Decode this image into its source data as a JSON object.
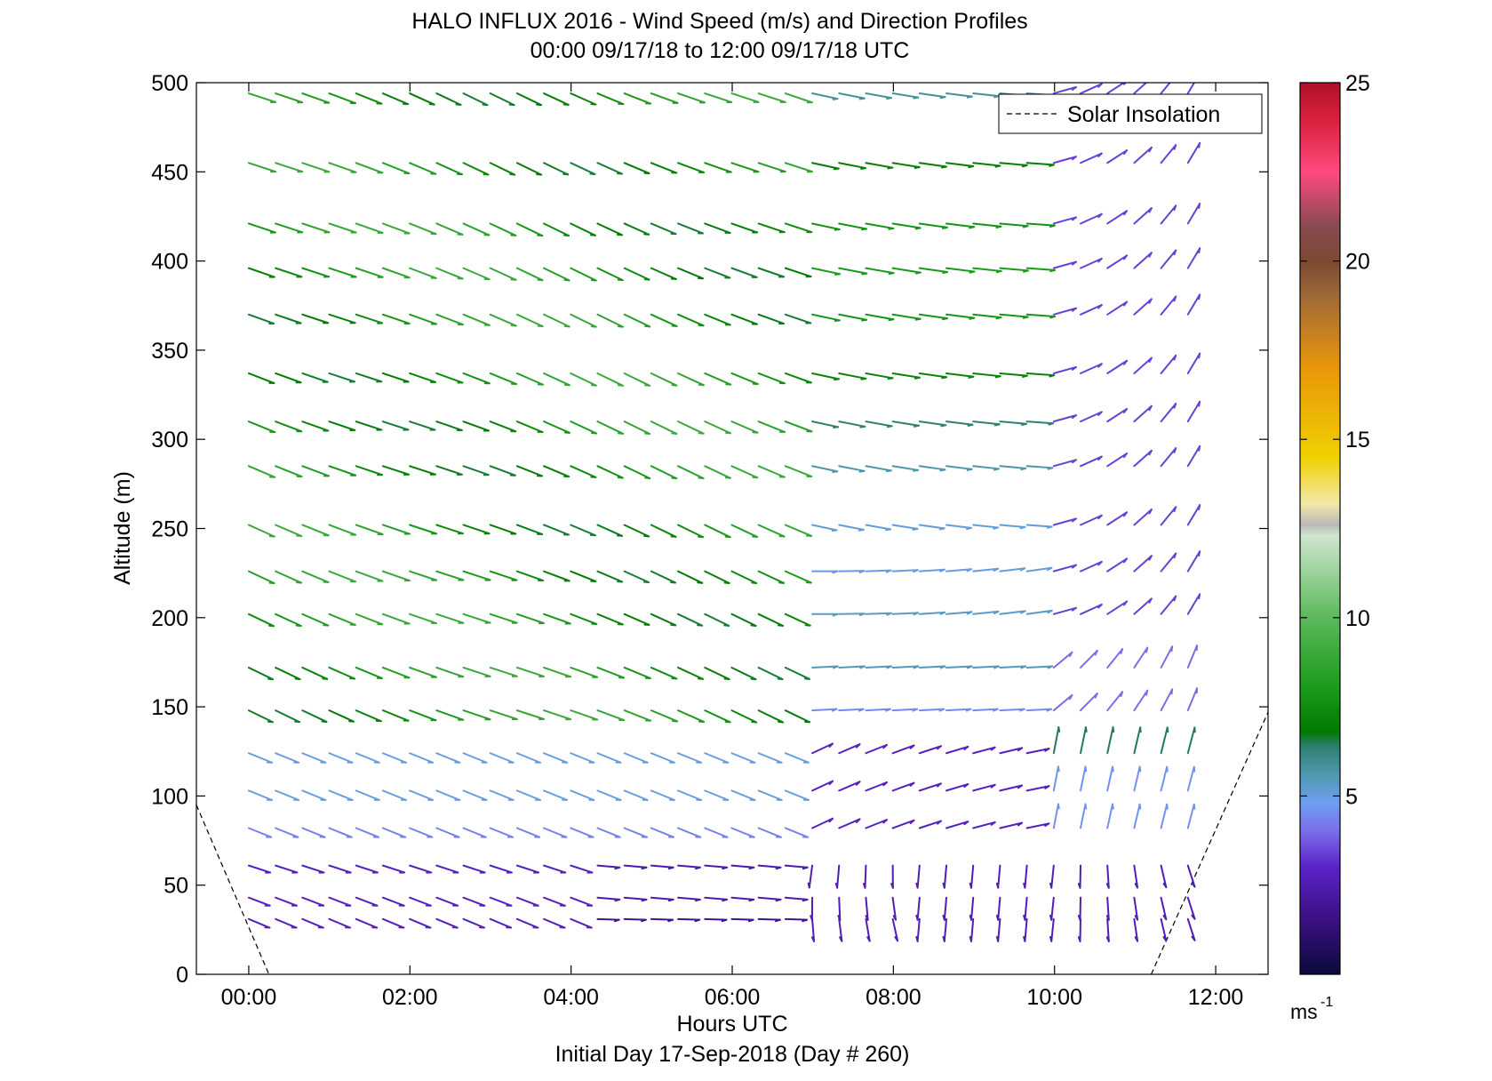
{
  "title": "HALO INFLUX 2016 - Wind Speed (m/s) and Direction Profiles",
  "subtitle": "00:00 09/17/18 to 12:00 09/17/18  UTC",
  "footer": "Initial Day 17-Sep-2018 (Day # 260)",
  "colorbar": {
    "unit": "ms",
    "unit_exp": "-1",
    "min": 0,
    "max": 25,
    "ticks": [
      {
        "value": 5,
        "label": "5"
      },
      {
        "value": 10,
        "label": "10"
      },
      {
        "value": 15,
        "label": "15"
      },
      {
        "value": 20,
        "label": "20"
      },
      {
        "value": 25,
        "label": "25"
      }
    ],
    "stops": [
      {
        "v": 0.0,
        "c": "#0a0a3a"
      },
      {
        "v": 1.5,
        "c": "#3a1080"
      },
      {
        "v": 3.0,
        "c": "#5a22c8"
      },
      {
        "v": 4.0,
        "c": "#7a6ee8"
      },
      {
        "v": 4.8,
        "c": "#6f9ef0"
      },
      {
        "v": 5.6,
        "c": "#4f98b0"
      },
      {
        "v": 6.4,
        "c": "#2e7e70"
      },
      {
        "v": 6.8,
        "c": "#007a00"
      },
      {
        "v": 8.0,
        "c": "#1a9a1a"
      },
      {
        "v": 10.0,
        "c": "#5cb85c"
      },
      {
        "v": 12.3,
        "c": "#cfe6cf"
      },
      {
        "v": 12.6,
        "c": "#b8b8b8"
      },
      {
        "v": 13.2,
        "c": "#f3e9a8"
      },
      {
        "v": 14.5,
        "c": "#f0d000"
      },
      {
        "v": 17.0,
        "c": "#e8960a"
      },
      {
        "v": 19.0,
        "c": "#a06a38"
      },
      {
        "v": 20.0,
        "c": "#7a4a32"
      },
      {
        "v": 21.0,
        "c": "#8a4a52"
      },
      {
        "v": 22.5,
        "c": "#ff4a80"
      },
      {
        "v": 24.0,
        "c": "#d8203a"
      },
      {
        "v": 25.0,
        "c": "#b0102a"
      }
    ]
  },
  "chart_data": {
    "type": "scatter",
    "subtype": "wind barbs (speed colored, direction shown)",
    "title": "HALO INFLUX 2016 - Wind Speed (m/s) and Direction Profiles",
    "xlabel": "Hours UTC",
    "ylabel": "Altitude (m)",
    "xlim": [
      -0.65,
      12.65
    ],
    "ylim": [
      0,
      500
    ],
    "x_ticks": [
      {
        "value": 0,
        "label": "00:00"
      },
      {
        "value": 2,
        "label": "02:00"
      },
      {
        "value": 4,
        "label": "04:00"
      },
      {
        "value": 6,
        "label": "06:00"
      },
      {
        "value": 8,
        "label": "08:00"
      },
      {
        "value": 10,
        "label": "10:00"
      },
      {
        "value": 12,
        "label": "12:00"
      }
    ],
    "y_ticks": [
      0,
      50,
      100,
      150,
      200,
      250,
      300,
      350,
      400,
      450,
      500
    ],
    "altitudes": [
      31,
      43,
      61,
      82,
      103,
      124,
      148,
      172,
      202,
      226,
      252,
      285,
      310,
      337,
      370,
      396,
      421,
      455,
      494
    ],
    "time_step_hours": 0.333,
    "wind_regimes": [
      {
        "hours": "00:00-06:40",
        "altitudes": "<= 61 m",
        "speed_ms": 3,
        "direction": "from north-west, arrows pointing east-south-east"
      },
      {
        "hours": "00:00-06:40",
        "altitudes": "82-124 m",
        "speed_ms": 5,
        "direction": "from north-west"
      },
      {
        "hours": "00:00-07:00",
        "altitudes": ">= 124 m",
        "speed_ms": 8,
        "direction": "from north-west"
      },
      {
        "hours": "07:00-09:40",
        "altitudes": "<= 124 m",
        "speed_ms": 2.5,
        "direction": "near northerly, turning"
      },
      {
        "hours": "09:00-11:00",
        "altitudes": ">= 250 m",
        "speed_ms": 4,
        "direction": "westerly, nearly horizontal"
      },
      {
        "hours": "11:00-11:40",
        "altitudes": "all",
        "speed_ms": 4,
        "direction": "from south-west, arrows pointing north-east"
      },
      {
        "hours": "10:40-11:40",
        "altitudes": "100-130 m",
        "speed_ms": 6,
        "direction": "southerly, nearly vertical"
      }
    ],
    "series": [
      {
        "name": "Solar Insolation",
        "style": "dashed black",
        "points": [
          [
            -0.65,
            95
          ],
          [
            0.25,
            0
          ],
          [
            11.2,
            0
          ],
          [
            12.65,
            147
          ]
        ]
      }
    ],
    "legend": {
      "entries": [
        "Solar Insolation"
      ],
      "placement": "top-right"
    },
    "grid": false
  }
}
